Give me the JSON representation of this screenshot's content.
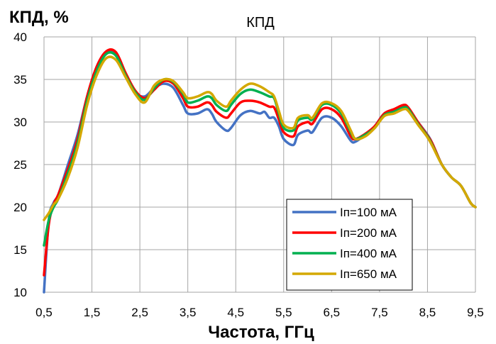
{
  "chart_data": {
    "type": "line",
    "title": "КПД",
    "xlabel": "Частота, ГГц",
    "ylabel": "КПД, %",
    "xlim": [
      0.5,
      9.5
    ],
    "ylim": [
      10,
      40
    ],
    "xticks": [
      "0,5",
      "1,5",
      "2,5",
      "3,5",
      "4,5",
      "5,5",
      "6,5",
      "7,5",
      "8,5",
      "9,5"
    ],
    "xtick_values": [
      0.5,
      1.5,
      2.5,
      3.5,
      4.5,
      5.5,
      6.5,
      7.5,
      8.5,
      9.5
    ],
    "yticks": [
      "10",
      "15",
      "20",
      "25",
      "30",
      "35",
      "40"
    ],
    "ytick_values": [
      10,
      15,
      20,
      25,
      30,
      35,
      40
    ],
    "grid": true,
    "legend_position": "bottom-right",
    "series": [
      {
        "name": "Iп=100 мА",
        "color": "#4472C4",
        "points": [
          [
            0.5,
            10.0
          ],
          [
            0.6,
            18.5
          ],
          [
            0.7,
            20.5
          ],
          [
            0.8,
            21.5
          ],
          [
            1.0,
            25.0
          ],
          [
            1.2,
            28.5
          ],
          [
            1.4,
            33.0
          ],
          [
            1.6,
            36.5
          ],
          [
            1.8,
            38.2
          ],
          [
            2.0,
            38.0
          ],
          [
            2.2,
            35.5
          ],
          [
            2.4,
            33.5
          ],
          [
            2.6,
            33.0
          ],
          [
            2.8,
            34.0
          ],
          [
            3.0,
            34.5
          ],
          [
            3.2,
            34.0
          ],
          [
            3.4,
            32.0
          ],
          [
            3.5,
            31.0
          ],
          [
            3.7,
            31.0
          ],
          [
            3.9,
            31.5
          ],
          [
            4.0,
            31.0
          ],
          [
            4.1,
            30.0
          ],
          [
            4.3,
            29.0
          ],
          [
            4.4,
            29.3
          ],
          [
            4.6,
            30.8
          ],
          [
            4.8,
            31.3
          ],
          [
            5.0,
            31.0
          ],
          [
            5.1,
            31.2
          ],
          [
            5.2,
            30.5
          ],
          [
            5.3,
            30.5
          ],
          [
            5.4,
            29.5
          ],
          [
            5.5,
            28.0
          ],
          [
            5.7,
            27.3
          ],
          [
            5.8,
            28.5
          ],
          [
            6.0,
            29.0
          ],
          [
            6.1,
            28.8
          ],
          [
            6.3,
            30.5
          ],
          [
            6.5,
            30.5
          ],
          [
            6.7,
            29.5
          ],
          [
            6.9,
            27.8
          ],
          [
            7.0,
            27.7
          ],
          [
            7.2,
            28.5
          ],
          [
            7.4,
            29.5
          ],
          [
            7.6,
            31.0
          ],
          [
            7.8,
            31.3
          ],
          [
            8.0,
            31.8
          ],
          [
            8.1,
            31.5
          ],
          [
            8.3,
            30.0
          ],
          [
            8.5,
            28.5
          ],
          [
            8.6,
            27.5
          ],
          [
            8.8,
            25.0
          ],
          [
            9.0,
            23.5
          ],
          [
            9.2,
            22.5
          ],
          [
            9.4,
            20.5
          ],
          [
            9.5,
            20.0
          ]
        ]
      },
      {
        "name": "Iп=200 мА",
        "color": "#FF0000",
        "points": [
          [
            0.5,
            12.0
          ],
          [
            0.6,
            18.0
          ],
          [
            0.7,
            20.3
          ],
          [
            0.8,
            21.5
          ],
          [
            1.0,
            24.5
          ],
          [
            1.2,
            28.0
          ],
          [
            1.4,
            33.0
          ],
          [
            1.6,
            36.5
          ],
          [
            1.8,
            38.3
          ],
          [
            2.0,
            38.2
          ],
          [
            2.2,
            35.8
          ],
          [
            2.4,
            33.7
          ],
          [
            2.6,
            32.8
          ],
          [
            2.8,
            33.8
          ],
          [
            3.0,
            34.8
          ],
          [
            3.2,
            34.5
          ],
          [
            3.4,
            32.8
          ],
          [
            3.5,
            31.8
          ],
          [
            3.7,
            31.8
          ],
          [
            3.9,
            32.3
          ],
          [
            4.0,
            32.0
          ],
          [
            4.1,
            31.2
          ],
          [
            4.3,
            30.5
          ],
          [
            4.4,
            31.0
          ],
          [
            4.6,
            32.3
          ],
          [
            4.8,
            32.5
          ],
          [
            5.0,
            32.3
          ],
          [
            5.2,
            31.8
          ],
          [
            5.3,
            31.7
          ],
          [
            5.4,
            30.3
          ],
          [
            5.5,
            28.8
          ],
          [
            5.7,
            28.3
          ],
          [
            5.8,
            29.5
          ],
          [
            6.0,
            30.0
          ],
          [
            6.1,
            29.8
          ],
          [
            6.3,
            31.5
          ],
          [
            6.5,
            31.5
          ],
          [
            6.7,
            30.5
          ],
          [
            6.9,
            28.3
          ],
          [
            7.0,
            28.0
          ],
          [
            7.2,
            28.6
          ],
          [
            7.4,
            29.5
          ],
          [
            7.6,
            31.0
          ],
          [
            7.8,
            31.5
          ],
          [
            8.0,
            32.0
          ],
          [
            8.1,
            31.7
          ],
          [
            8.3,
            30.0
          ],
          [
            8.5,
            28.4
          ],
          [
            8.6,
            27.5
          ],
          [
            8.8,
            25.0
          ],
          [
            9.0,
            23.5
          ],
          [
            9.2,
            22.5
          ],
          [
            9.4,
            20.5
          ],
          [
            9.5,
            20.0
          ]
        ]
      },
      {
        "name": "Iп=400 мА",
        "color": "#00B050",
        "points": [
          [
            0.5,
            15.5
          ],
          [
            0.6,
            18.5
          ],
          [
            0.7,
            20.0
          ],
          [
            0.8,
            21.0
          ],
          [
            1.0,
            24.0
          ],
          [
            1.2,
            27.5
          ],
          [
            1.4,
            32.5
          ],
          [
            1.6,
            36.0
          ],
          [
            1.8,
            38.0
          ],
          [
            2.0,
            37.8
          ],
          [
            2.2,
            35.5
          ],
          [
            2.4,
            33.5
          ],
          [
            2.6,
            32.6
          ],
          [
            2.8,
            34.0
          ],
          [
            3.0,
            35.0
          ],
          [
            3.2,
            34.7
          ],
          [
            3.4,
            33.3
          ],
          [
            3.5,
            32.3
          ],
          [
            3.7,
            32.5
          ],
          [
            3.9,
            33.0
          ],
          [
            4.0,
            32.8
          ],
          [
            4.1,
            32.0
          ],
          [
            4.3,
            31.3
          ],
          [
            4.4,
            32.0
          ],
          [
            4.6,
            33.3
          ],
          [
            4.8,
            33.8
          ],
          [
            5.0,
            33.5
          ],
          [
            5.2,
            33.0
          ],
          [
            5.3,
            32.8
          ],
          [
            5.4,
            31.0
          ],
          [
            5.5,
            29.3
          ],
          [
            5.7,
            29.0
          ],
          [
            5.8,
            30.2
          ],
          [
            6.0,
            30.5
          ],
          [
            6.1,
            30.3
          ],
          [
            6.3,
            32.0
          ],
          [
            6.5,
            32.0
          ],
          [
            6.7,
            31.0
          ],
          [
            6.9,
            28.8
          ],
          [
            7.0,
            28.0
          ],
          [
            7.2,
            28.5
          ],
          [
            7.4,
            29.3
          ],
          [
            7.6,
            30.8
          ],
          [
            7.8,
            31.2
          ],
          [
            8.0,
            31.7
          ],
          [
            8.1,
            31.5
          ],
          [
            8.3,
            29.8
          ],
          [
            8.5,
            28.3
          ],
          [
            8.6,
            27.3
          ],
          [
            8.8,
            25.0
          ],
          [
            9.0,
            23.5
          ],
          [
            9.2,
            22.5
          ],
          [
            9.4,
            20.5
          ],
          [
            9.5,
            20.0
          ]
        ]
      },
      {
        "name": "Iп=650 мА",
        "color": "#D4A800",
        "points": [
          [
            0.5,
            18.5
          ],
          [
            0.6,
            19.3
          ],
          [
            0.7,
            20.3
          ],
          [
            0.8,
            21.0
          ],
          [
            1.0,
            23.5
          ],
          [
            1.2,
            27.0
          ],
          [
            1.4,
            32.0
          ],
          [
            1.6,
            35.5
          ],
          [
            1.8,
            37.5
          ],
          [
            2.0,
            37.3
          ],
          [
            2.2,
            35.3
          ],
          [
            2.4,
            33.3
          ],
          [
            2.6,
            32.3
          ],
          [
            2.8,
            34.3
          ],
          [
            3.0,
            35.0
          ],
          [
            3.2,
            34.8
          ],
          [
            3.4,
            33.5
          ],
          [
            3.5,
            32.8
          ],
          [
            3.7,
            33.0
          ],
          [
            3.9,
            33.5
          ],
          [
            4.0,
            33.3
          ],
          [
            4.1,
            32.5
          ],
          [
            4.3,
            31.8
          ],
          [
            4.4,
            32.5
          ],
          [
            4.6,
            33.8
          ],
          [
            4.8,
            34.5
          ],
          [
            5.0,
            34.2
          ],
          [
            5.2,
            33.5
          ],
          [
            5.3,
            33.0
          ],
          [
            5.4,
            31.3
          ],
          [
            5.5,
            29.7
          ],
          [
            5.7,
            29.3
          ],
          [
            5.8,
            30.5
          ],
          [
            6.0,
            30.8
          ],
          [
            6.1,
            30.5
          ],
          [
            6.3,
            32.2
          ],
          [
            6.5,
            32.2
          ],
          [
            6.7,
            31.3
          ],
          [
            6.9,
            29.0
          ],
          [
            7.0,
            28.0
          ],
          [
            7.2,
            28.3
          ],
          [
            7.4,
            29.3
          ],
          [
            7.6,
            30.7
          ],
          [
            7.8,
            31.0
          ],
          [
            8.0,
            31.5
          ],
          [
            8.1,
            31.3
          ],
          [
            8.3,
            29.7
          ],
          [
            8.5,
            28.2
          ],
          [
            8.6,
            27.2
          ],
          [
            8.8,
            25.0
          ],
          [
            9.0,
            23.5
          ],
          [
            9.2,
            22.5
          ],
          [
            9.4,
            20.5
          ],
          [
            9.5,
            20.0
          ]
        ]
      }
    ]
  }
}
